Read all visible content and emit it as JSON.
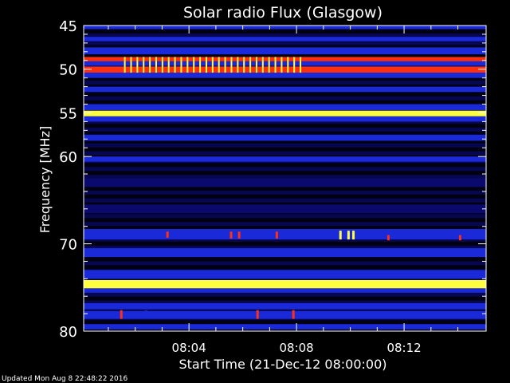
{
  "chart_data": {
    "type": "heatmap",
    "title": "Solar radio Flux (Glasgow)",
    "xlabel": "Start Time (21-Dec-12 08:00:00)",
    "ylabel": "Frequency [MHz]",
    "xlim": [
      "08:00:05",
      "08:15:03"
    ],
    "ylim": [
      45,
      80
    ],
    "y_inverted": true,
    "x_ticks": [
      {
        "t": "08:04:00",
        "label": "08:04"
      },
      {
        "t": "08:08:00",
        "label": "08:08"
      },
      {
        "t": "08:12:00",
        "label": "08:12"
      }
    ],
    "y_ticks": [
      45,
      50,
      55,
      60,
      70,
      80
    ],
    "colors": {
      "background": "#000010",
      "low": "#0a0a6e",
      "mid": "#1a2ad8",
      "high": "#ff3010",
      "peak": "#ffff40"
    },
    "bands": [
      {
        "f0": 45.0,
        "f1": 45.4,
        "level": "mid"
      },
      {
        "f0": 46.3,
        "f1": 46.8,
        "level": "mid"
      },
      {
        "f0": 47.5,
        "f1": 48.3,
        "level": "mid"
      },
      {
        "f0": 48.6,
        "f1": 49.1,
        "level": "high"
      },
      {
        "f0": 49.1,
        "f1": 49.6,
        "level": "mid"
      },
      {
        "f0": 49.7,
        "f1": 50.4,
        "level": "high"
      },
      {
        "f0": 50.4,
        "f1": 51.0,
        "level": "mid"
      },
      {
        "f0": 52.0,
        "f1": 52.6,
        "level": "mid"
      },
      {
        "f0": 54.0,
        "f1": 54.7,
        "level": "mid"
      },
      {
        "f0": 54.75,
        "f1": 55.4,
        "level": "peak"
      },
      {
        "f0": 55.4,
        "f1": 56.0,
        "level": "mid"
      },
      {
        "f0": 57.5,
        "f1": 58.2,
        "level": "mid"
      },
      {
        "f0": 60.0,
        "f1": 60.6,
        "level": "mid"
      },
      {
        "f0": 62.5,
        "f1": 63.5,
        "level": "low"
      },
      {
        "f0": 65.5,
        "f1": 66.5,
        "level": "low"
      },
      {
        "f0": 68.3,
        "f1": 69.5,
        "level": "mid"
      },
      {
        "f0": 70.5,
        "f1": 71.5,
        "level": "mid"
      },
      {
        "f0": 73.0,
        "f1": 74.0,
        "level": "mid"
      },
      {
        "f0": 74.15,
        "f1": 75.1,
        "level": "peak"
      },
      {
        "f0": 75.1,
        "f1": 75.6,
        "level": "mid"
      },
      {
        "f0": 76.8,
        "f1": 77.5,
        "level": "mid"
      },
      {
        "f0": 77.7,
        "f1": 78.6,
        "level": "mid"
      },
      {
        "f0": 79.2,
        "f1": 79.8,
        "level": "mid"
      }
    ],
    "periodic_spikes": {
      "start": "08:01:35",
      "end": "08:08:10",
      "interval_s": 14,
      "f0": 48.6,
      "f1": 50.4,
      "level": "peak"
    },
    "bursts": [
      {
        "t": "08:01:29",
        "f0": 77.6,
        "f1": 78.6,
        "level": "high"
      },
      {
        "t": "08:02:24",
        "f0": 77.6,
        "f1": 78.4,
        "level": "mid"
      },
      {
        "t": "08:03:12",
        "f0": 68.6,
        "f1": 69.3,
        "level": "high"
      },
      {
        "t": "08:05:34",
        "f0": 68.6,
        "f1": 69.4,
        "level": "high"
      },
      {
        "t": "08:05:52",
        "f0": 68.6,
        "f1": 69.4,
        "level": "high"
      },
      {
        "t": "08:06:33",
        "f0": 77.6,
        "f1": 78.6,
        "level": "high"
      },
      {
        "t": "08:07:16",
        "f0": 68.6,
        "f1": 69.4,
        "level": "high"
      },
      {
        "t": "08:07:53",
        "f0": 77.6,
        "f1": 78.6,
        "level": "high"
      },
      {
        "t": "08:09:38",
        "f0": 68.5,
        "f1": 69.5,
        "level": "peak"
      },
      {
        "t": "08:09:56",
        "f0": 68.5,
        "f1": 69.5,
        "level": "peak"
      },
      {
        "t": "08:10:07",
        "f0": 68.5,
        "f1": 69.5,
        "level": "peak"
      },
      {
        "t": "08:11:25",
        "f0": 69.0,
        "f1": 69.6,
        "level": "high"
      },
      {
        "t": "08:14:05",
        "f0": 69.0,
        "f1": 69.6,
        "level": "high"
      }
    ]
  },
  "footer": {
    "updated": "Updated Mon Aug  8 22:48:22 2016"
  }
}
